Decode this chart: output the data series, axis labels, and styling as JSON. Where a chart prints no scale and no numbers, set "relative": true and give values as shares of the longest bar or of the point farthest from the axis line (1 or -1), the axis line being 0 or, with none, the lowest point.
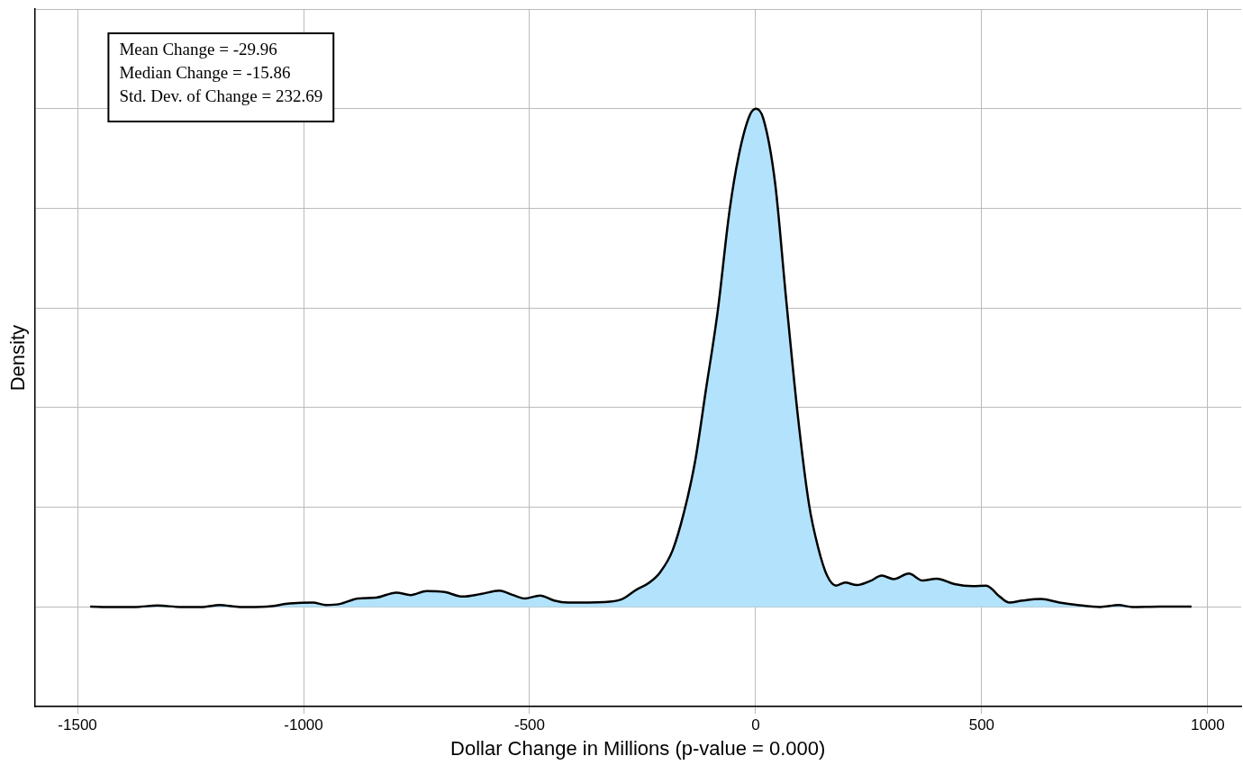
{
  "chart_data": {
    "type": "area",
    "relative": true,
    "xlabel": "Dollar Change in Millions (p-value = 0.000)",
    "ylabel": "Density",
    "annotations": [
      "Mean Change = -29.96",
      "Median Change = -15.86",
      "Std. Dev. of Change = 232.69"
    ],
    "xlim": [
      -1595,
      1074
    ],
    "xticks": [
      -1500,
      -1000,
      -500,
      0,
      500,
      1000
    ],
    "grid": true,
    "legend": false,
    "marker": "none",
    "line_style": "solid",
    "series": [
      {
        "color": "#b3e3fc",
        "x": [
          -1472,
          -1423,
          -1373,
          -1323,
          -1272,
          -1222,
          -1186,
          -1141,
          -1081,
          -1031,
          -980,
          -950,
          -920,
          -880,
          -839,
          -795,
          -763,
          -728,
          -688,
          -648,
          -608,
          -567,
          -537,
          -511,
          -477,
          -446,
          -416,
          -336,
          -295,
          -265,
          -235,
          -211,
          -184,
          -158,
          -134,
          -110,
          -84,
          -58,
          -37,
          -13,
          1,
          17,
          43,
          67,
          94,
          118,
          138,
          158,
          178,
          198,
          224,
          253,
          279,
          305,
          339,
          369,
          400,
          440,
          480,
          510,
          541,
          561,
          591,
          631,
          672,
          712,
          762,
          803,
          833,
          893,
          964
        ],
        "values": [
          0.001,
          0,
          0,
          0.003,
          0,
          0,
          0.004,
          0,
          0.001,
          0.007,
          0.009,
          0.004,
          0.006,
          0.017,
          0.019,
          0.029,
          0.024,
          0.032,
          0.03,
          0.021,
          0.026,
          0.033,
          0.024,
          0.017,
          0.023,
          0.013,
          0.009,
          0.01,
          0.016,
          0.034,
          0.049,
          0.07,
          0.113,
          0.192,
          0.292,
          0.436,
          0.593,
          0.794,
          0.908,
          0.987,
          1,
          0.98,
          0.851,
          0.622,
          0.378,
          0.206,
          0.12,
          0.063,
          0.043,
          0.049,
          0.044,
          0.052,
          0.063,
          0.056,
          0.067,
          0.053,
          0.057,
          0.046,
          0.042,
          0.043,
          0.02,
          0.009,
          0.013,
          0.016,
          0.009,
          0.004,
          0,
          0.004,
          0,
          0.001,
          0.001
        ]
      }
    ]
  }
}
